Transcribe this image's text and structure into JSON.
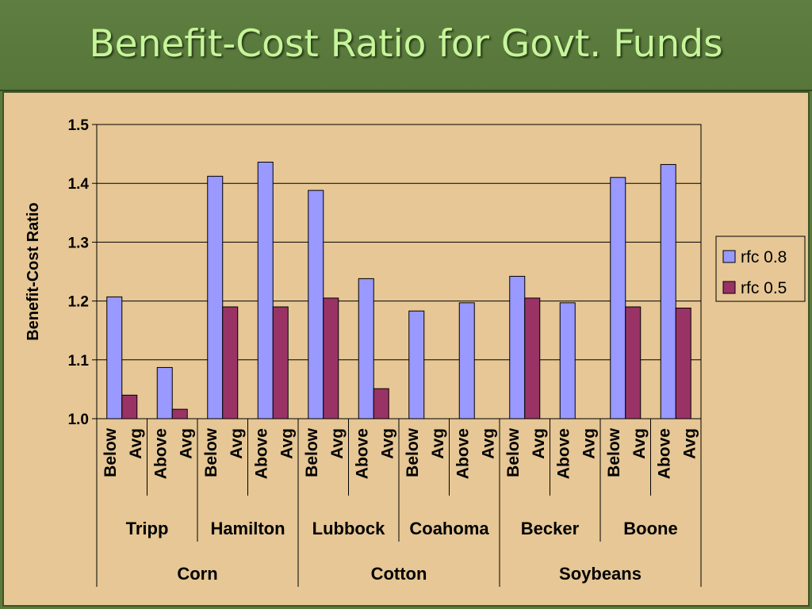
{
  "title": "Benefit-Cost Ratio for Govt. Funds",
  "chart_data": {
    "type": "bar",
    "ylabel": "Benefit-Cost Ratio",
    "ylim": [
      1.0,
      1.5
    ],
    "yticks": [
      "1.0",
      "1.1",
      "1.2",
      "1.3",
      "1.4",
      "1.5"
    ],
    "grid": true,
    "legend_position": "right",
    "categories": [
      {
        "position": "Below",
        "suffix": "Avg"
      },
      {
        "position": "Above",
        "suffix": "Avg"
      },
      {
        "position": "Below",
        "suffix": "Avg"
      },
      {
        "position": "Above",
        "suffix": "Avg"
      },
      {
        "position": "Below",
        "suffix": "Avg"
      },
      {
        "position": "Above",
        "suffix": "Avg"
      },
      {
        "position": "Below",
        "suffix": "Avg"
      },
      {
        "position": "Above",
        "suffix": "Avg"
      },
      {
        "position": "Below",
        "suffix": "Avg"
      },
      {
        "position": "Above",
        "suffix": "Avg"
      },
      {
        "position": "Below",
        "suffix": "Avg"
      },
      {
        "position": "Above",
        "suffix": "Avg"
      }
    ],
    "locations": [
      "Tripp",
      "Hamilton",
      "Lubbock",
      "Coahoma",
      "Becker",
      "Boone"
    ],
    "crops": [
      "Corn",
      "Cotton",
      "Soybeans"
    ],
    "series": [
      {
        "name": "rfc 0.8",
        "color": "#9999ff",
        "values": [
          1.207,
          1.087,
          1.412,
          1.436,
          1.388,
          1.238,
          1.183,
          1.197,
          1.242,
          1.197,
          1.41,
          1.432
        ]
      },
      {
        "name": "rfc 0.5",
        "color": "#993366",
        "values": [
          1.04,
          1.016,
          1.19,
          1.19,
          1.205,
          1.051,
          null,
          null,
          1.205,
          null,
          1.19,
          1.188
        ]
      }
    ]
  }
}
